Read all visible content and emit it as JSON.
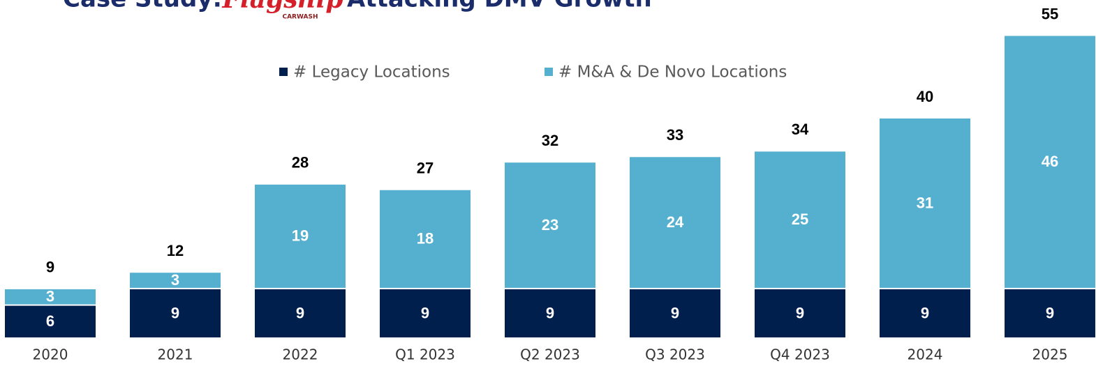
{
  "chart_data": {
    "type": "stacked_bar",
    "title_parts": [
      "Case Study:",
      "Attacking DMV Growth"
    ],
    "logo": {
      "name": "Flagship",
      "tagline": "CARWASH"
    },
    "categories": [
      "2020",
      "2021",
      "2022",
      "Q1 2023",
      "Q2 2023",
      "Q3 2023",
      "Q4 2023",
      "2024",
      "2025"
    ],
    "series": [
      {
        "name": "# Legacy Locations",
        "color": "#001f4d",
        "values": [
          6,
          9,
          9,
          9,
          9,
          9,
          9,
          9,
          9
        ]
      },
      {
        "name": "# M&A & De Novo Locations",
        "color": "#55b0cf",
        "values": [
          3,
          3,
          19,
          18,
          23,
          24,
          25,
          31,
          46
        ]
      }
    ],
    "totals": [
      9,
      12,
      28,
      27,
      32,
      33,
      34,
      40,
      55
    ],
    "ylim": [
      0,
      60
    ]
  }
}
